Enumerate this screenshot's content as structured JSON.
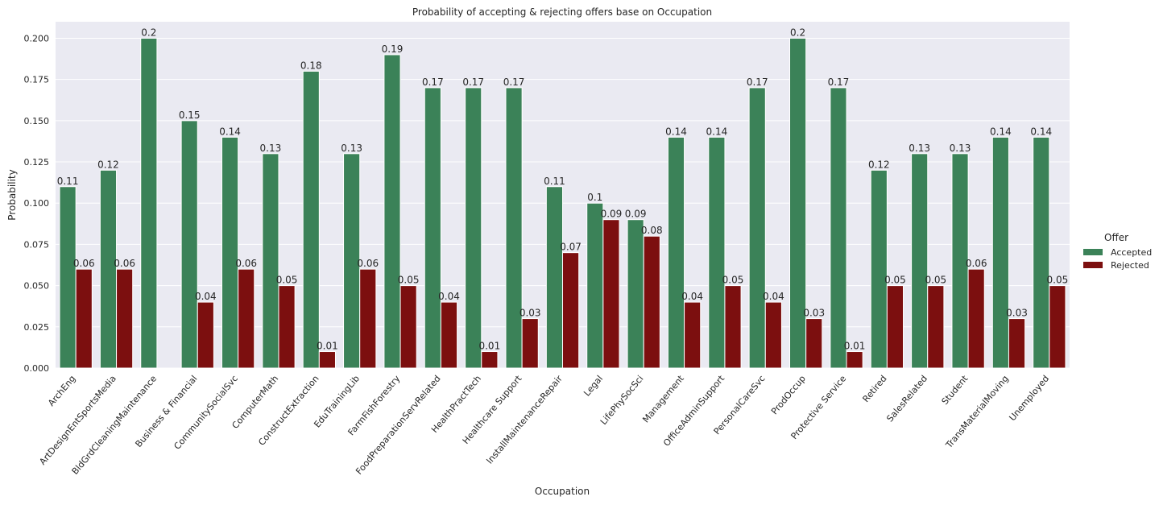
{
  "chart_data": {
    "type": "bar",
    "title": "Probability of accepting & rejecting offers base on Occupation",
    "xlabel": "Occupation",
    "ylabel": "Probability",
    "ylim": [
      0,
      0.21
    ],
    "yticks": [
      "0.000",
      "0.025",
      "0.050",
      "0.075",
      "0.100",
      "0.125",
      "0.150",
      "0.175",
      "0.200"
    ],
    "grid": true,
    "legend": {
      "title": "Offer",
      "placement": "right"
    },
    "categories": [
      "ArchEng",
      "ArtDesignEntSportsMedia",
      "BldGrdCleaningMaintenance",
      "Business & Financial",
      "CommunitySocialSvc",
      "ComputerMath",
      "ConstructExtraction",
      "EduTrainingLib",
      "FarmFishForestry",
      "FoodPreparationServRelated",
      "HealthPractTech",
      "Healthcare Support",
      "InstallMaintenanceRepair",
      "Legal",
      "LifePhySocSci",
      "Management",
      "OfficeAdminSupport",
      "PersonalCareSvc",
      "ProdOccup",
      "Protective Service",
      "Retired",
      "SalesRelated",
      "Student",
      "TransMaterialMoving",
      "Unemployed"
    ],
    "series": [
      {
        "name": "Accepted",
        "color": "#3b8258",
        "values": [
          0.11,
          0.12,
          0.2,
          0.15,
          0.14,
          0.13,
          0.18,
          0.13,
          0.19,
          0.17,
          0.17,
          0.17,
          0.11,
          0.1,
          0.09,
          0.14,
          0.14,
          0.17,
          0.2,
          0.17,
          0.12,
          0.13,
          0.13,
          0.14,
          0.14
        ],
        "labels": [
          "0.11",
          "0.12",
          "0.2",
          "0.15",
          "0.14",
          "0.13",
          "0.18",
          "0.13",
          "0.19",
          "0.17",
          "0.17",
          "0.17",
          "0.11",
          "0.1",
          "0.09",
          "0.14",
          "0.14",
          "0.17",
          "0.2",
          "0.17",
          "0.12",
          "0.13",
          "0.13",
          "0.14",
          "0.14"
        ]
      },
      {
        "name": "Rejected",
        "color": "#7c0f0f",
        "values": [
          0.06,
          0.06,
          null,
          0.04,
          0.06,
          0.05,
          0.01,
          0.06,
          0.05,
          0.04,
          0.01,
          0.03,
          0.07,
          0.09,
          0.08,
          0.04,
          0.05,
          0.04,
          0.03,
          0.01,
          0.05,
          0.05,
          0.06,
          0.03,
          0.05
        ],
        "labels": [
          "0.06",
          "0.06",
          "",
          "0.04",
          "0.06",
          "0.05",
          "0.01",
          "0.06",
          "0.05",
          "0.04",
          "0.01",
          "0.03",
          "0.07",
          "0.09",
          "0.08",
          "0.04",
          "0.05",
          "0.04",
          "0.03",
          "0.01",
          "0.05",
          "0.05",
          "0.06",
          "0.03",
          "0.05"
        ]
      }
    ],
    "style": {
      "plot_background": "#eaeaf2",
      "grid_color": "#ffffff"
    }
  }
}
